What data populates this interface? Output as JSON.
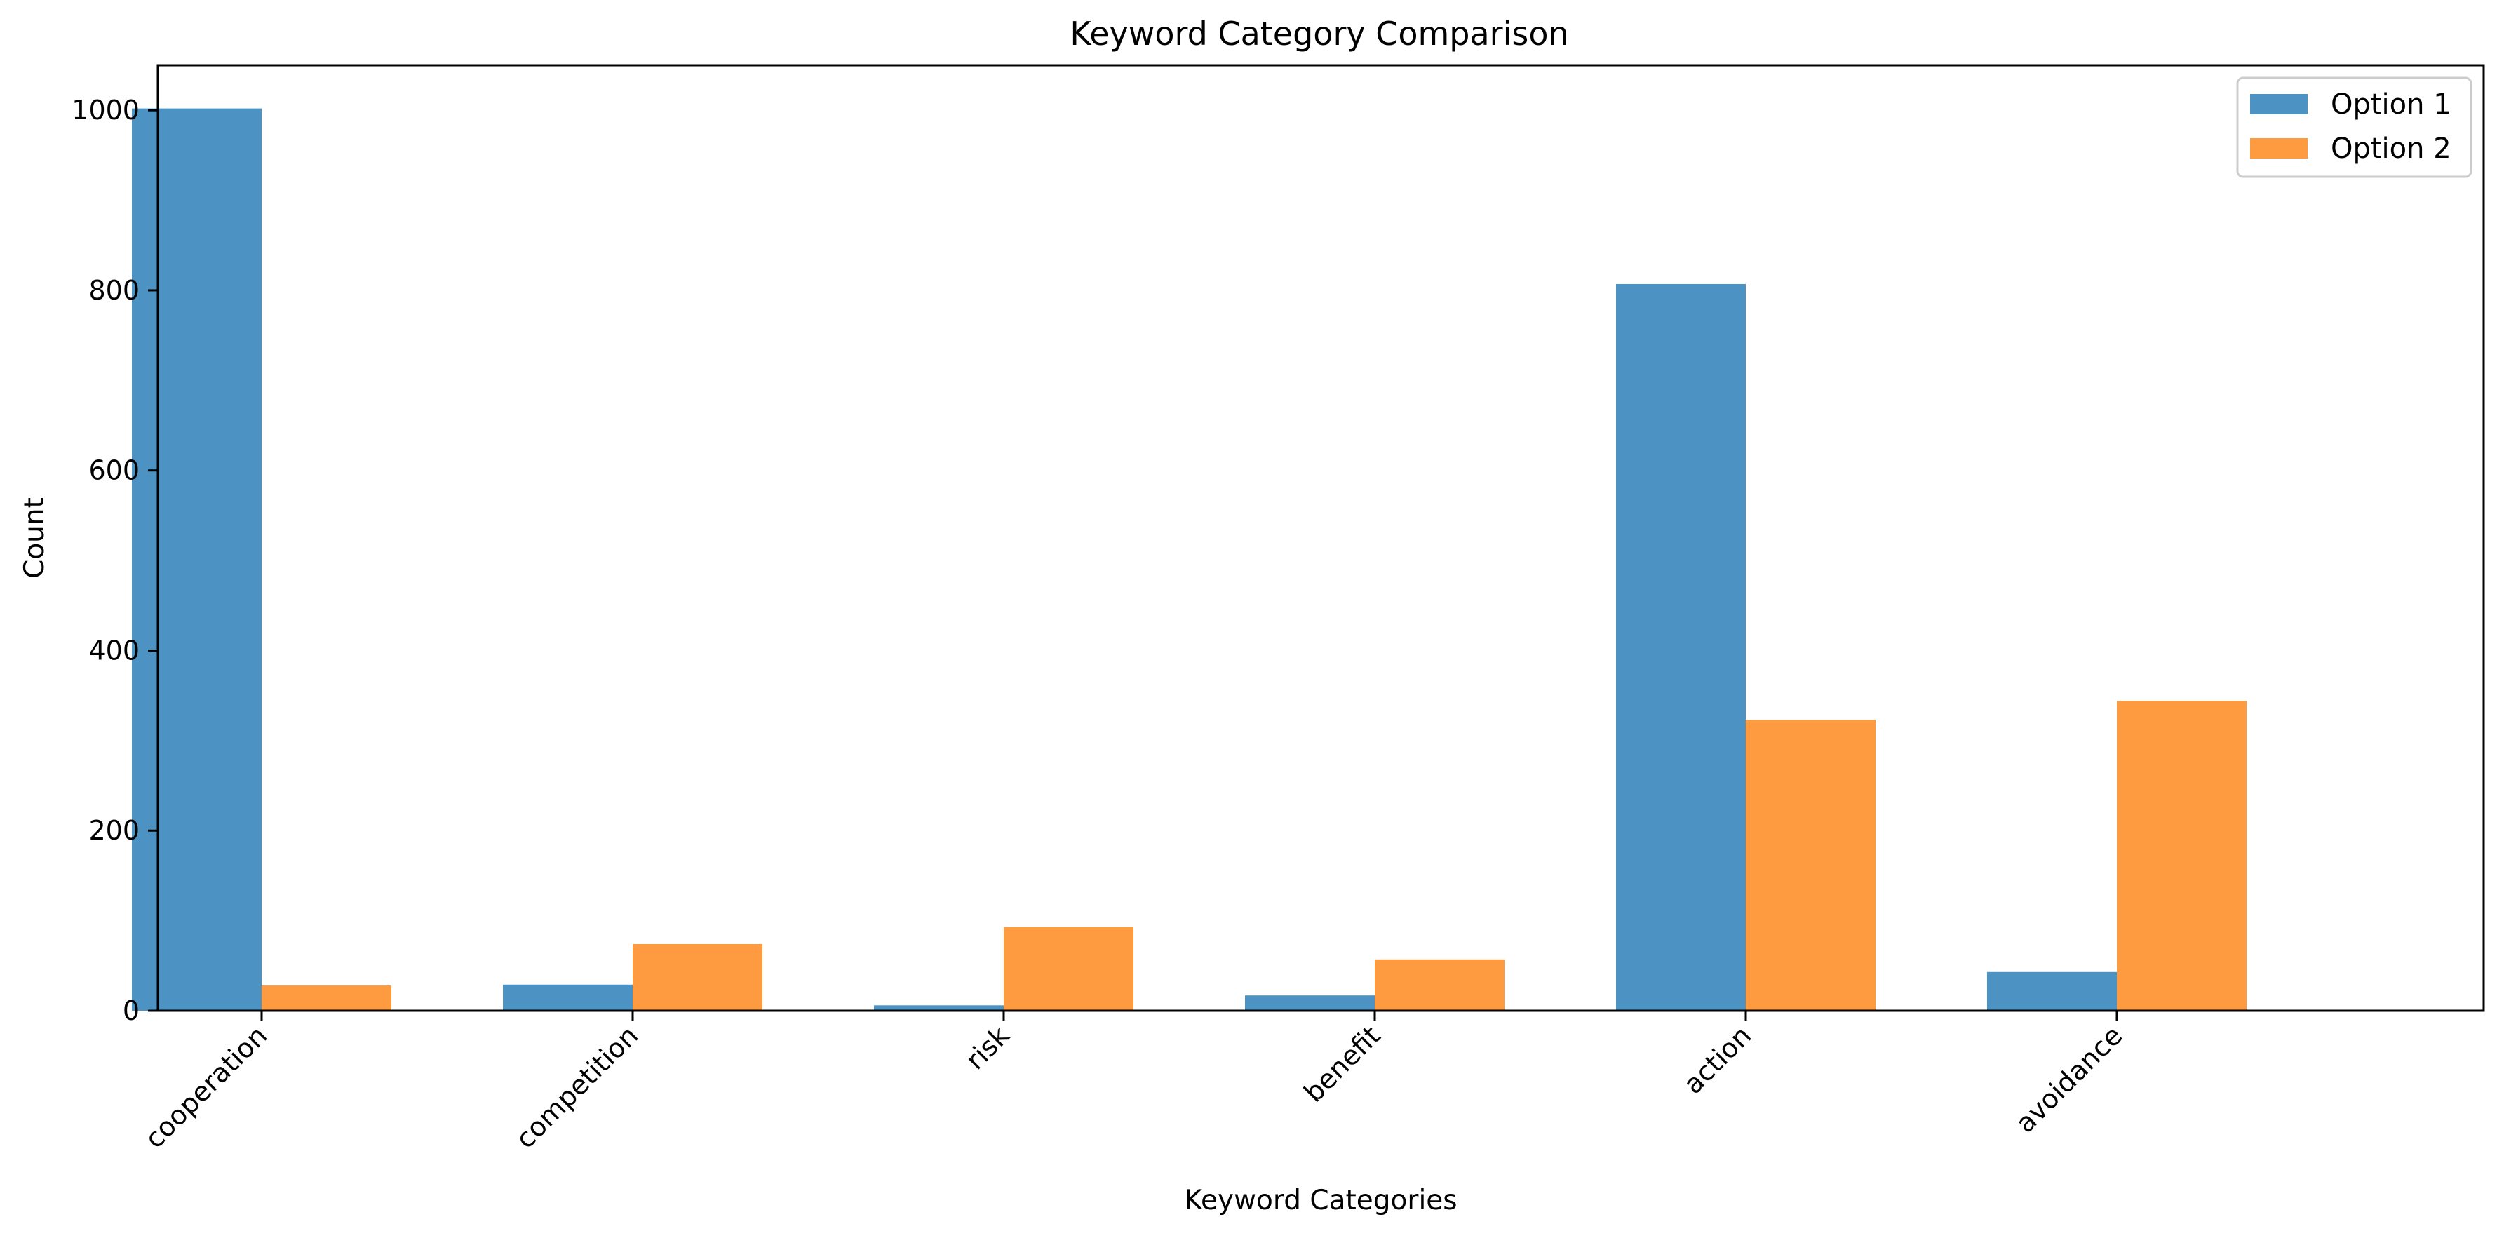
{
  "chart_data": {
    "type": "bar",
    "title": "Keyword Category Comparison",
    "xlabel": "Keyword Categories",
    "ylabel": "Count",
    "categories": [
      "cooperation",
      "competition",
      "risk",
      "benefit",
      "action",
      "avoidance"
    ],
    "series": [
      {
        "name": "Option 1",
        "color": "#4c93c3",
        "values": [
          1002,
          29,
          6,
          17,
          807,
          43
        ]
      },
      {
        "name": "Option 2",
        "color": "#fe9a40",
        "values": [
          28,
          74,
          93,
          57,
          323,
          344
        ]
      }
    ],
    "ylim": [
      0,
      1050
    ],
    "yticks": [
      0,
      200,
      400,
      600,
      800,
      1000
    ],
    "grid": false,
    "legend_position": "top-right"
  }
}
